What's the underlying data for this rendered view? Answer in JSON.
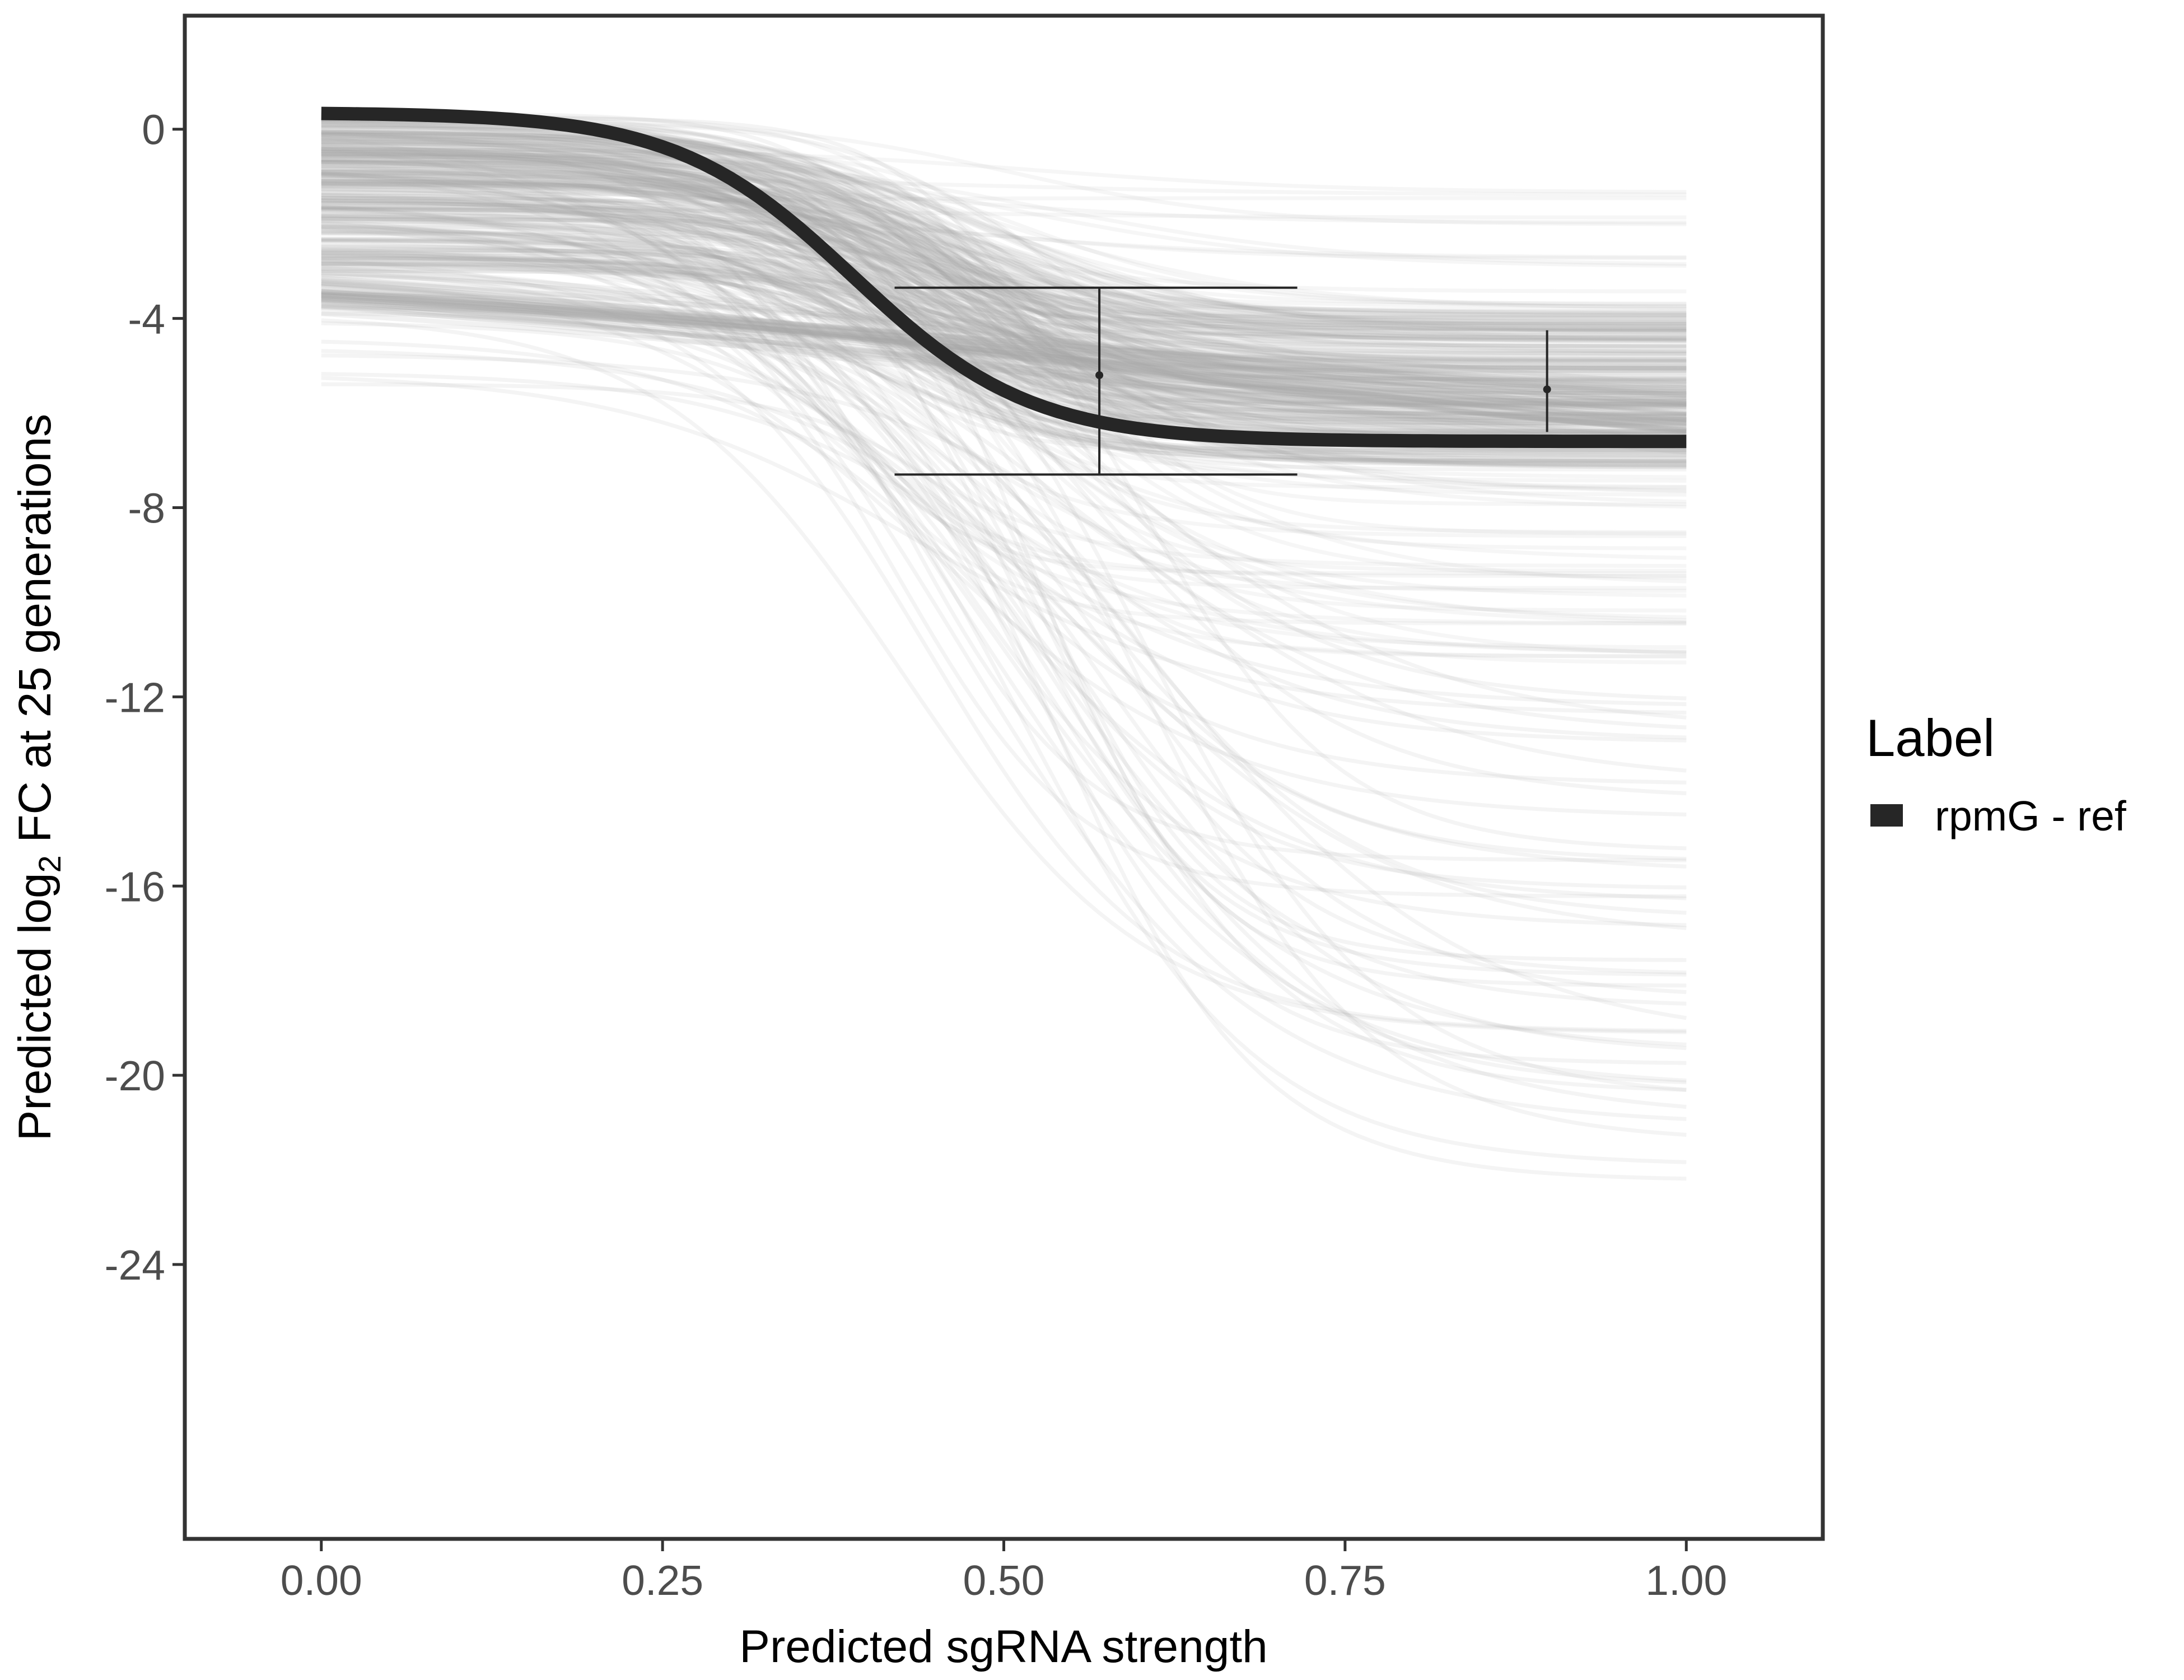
{
  "chart_data": {
    "type": "line",
    "xlabel": "Predicted sgRNA strength",
    "ylabel": {
      "prefix": "Predicted  log",
      "subscript": "2",
      "suffix": " FC at 25 generations"
    },
    "xlim": [
      -0.1,
      1.1
    ],
    "ylim": [
      -29.8,
      2.4
    ],
    "x_ticks": [
      0.0,
      0.25,
      0.5,
      0.75,
      1.0
    ],
    "x_tick_labels": [
      "0.00",
      "0.25",
      "0.50",
      "0.75",
      "1.00"
    ],
    "y_ticks": [
      0,
      -4,
      -8,
      -12,
      -16,
      -20,
      -24
    ],
    "y_tick_labels": [
      "0",
      "-4",
      "-8",
      "-12",
      "-16",
      "-20",
      "-24"
    ],
    "grid": false,
    "legend": {
      "title": "Label",
      "position": "right",
      "entries": [
        {
          "label": "rpmG - ref",
          "color": "#262626"
        }
      ]
    },
    "main_series": {
      "name": "rpmG - ref",
      "color": "#262626",
      "model": "logistic",
      "top": 0.35,
      "bottom": -6.6,
      "midpoint": 0.39,
      "scale": 0.065
    },
    "posterior_draws": {
      "color": "#a6a6a6",
      "description_count": 320,
      "bands": [
        {
          "top": [
            -3.0,
            0.35
          ],
          "bottom": [
            -7.2,
            -3.8
          ],
          "midpoint": [
            0.38,
            0.5
          ],
          "scale": [
            0.05,
            0.09
          ],
          "weight": 0.62,
          "opacity": 0.12
        },
        {
          "top": [
            -2.0,
            0.3
          ],
          "bottom": [
            -11.5,
            -1.0
          ],
          "midpoint": [
            0.35,
            0.55
          ],
          "scale": [
            0.05,
            0.12
          ],
          "weight": 0.25,
          "opacity": 0.1
        },
        {
          "top": [
            -6.0,
            0.0
          ],
          "bottom": [
            -22.4,
            -12.0
          ],
          "midpoint": [
            0.42,
            0.62
          ],
          "scale": [
            0.06,
            0.12
          ],
          "weight": 0.13,
          "opacity": 0.12
        }
      ],
      "slow_band": {
        "top": -2.7,
        "bottom": -7.0,
        "midpoint": 0.55,
        "scale": 0.35,
        "count": 40,
        "opacity": 0.16
      }
    },
    "error_bars": [
      {
        "x": 0.57,
        "y": -5.2,
        "ymin": -7.3,
        "ymax": -3.35,
        "xmin": 0.42,
        "xmax": 0.715
      },
      {
        "x": 0.898,
        "y": -5.5,
        "ymin": -6.4,
        "ymax": -4.25
      }
    ]
  }
}
